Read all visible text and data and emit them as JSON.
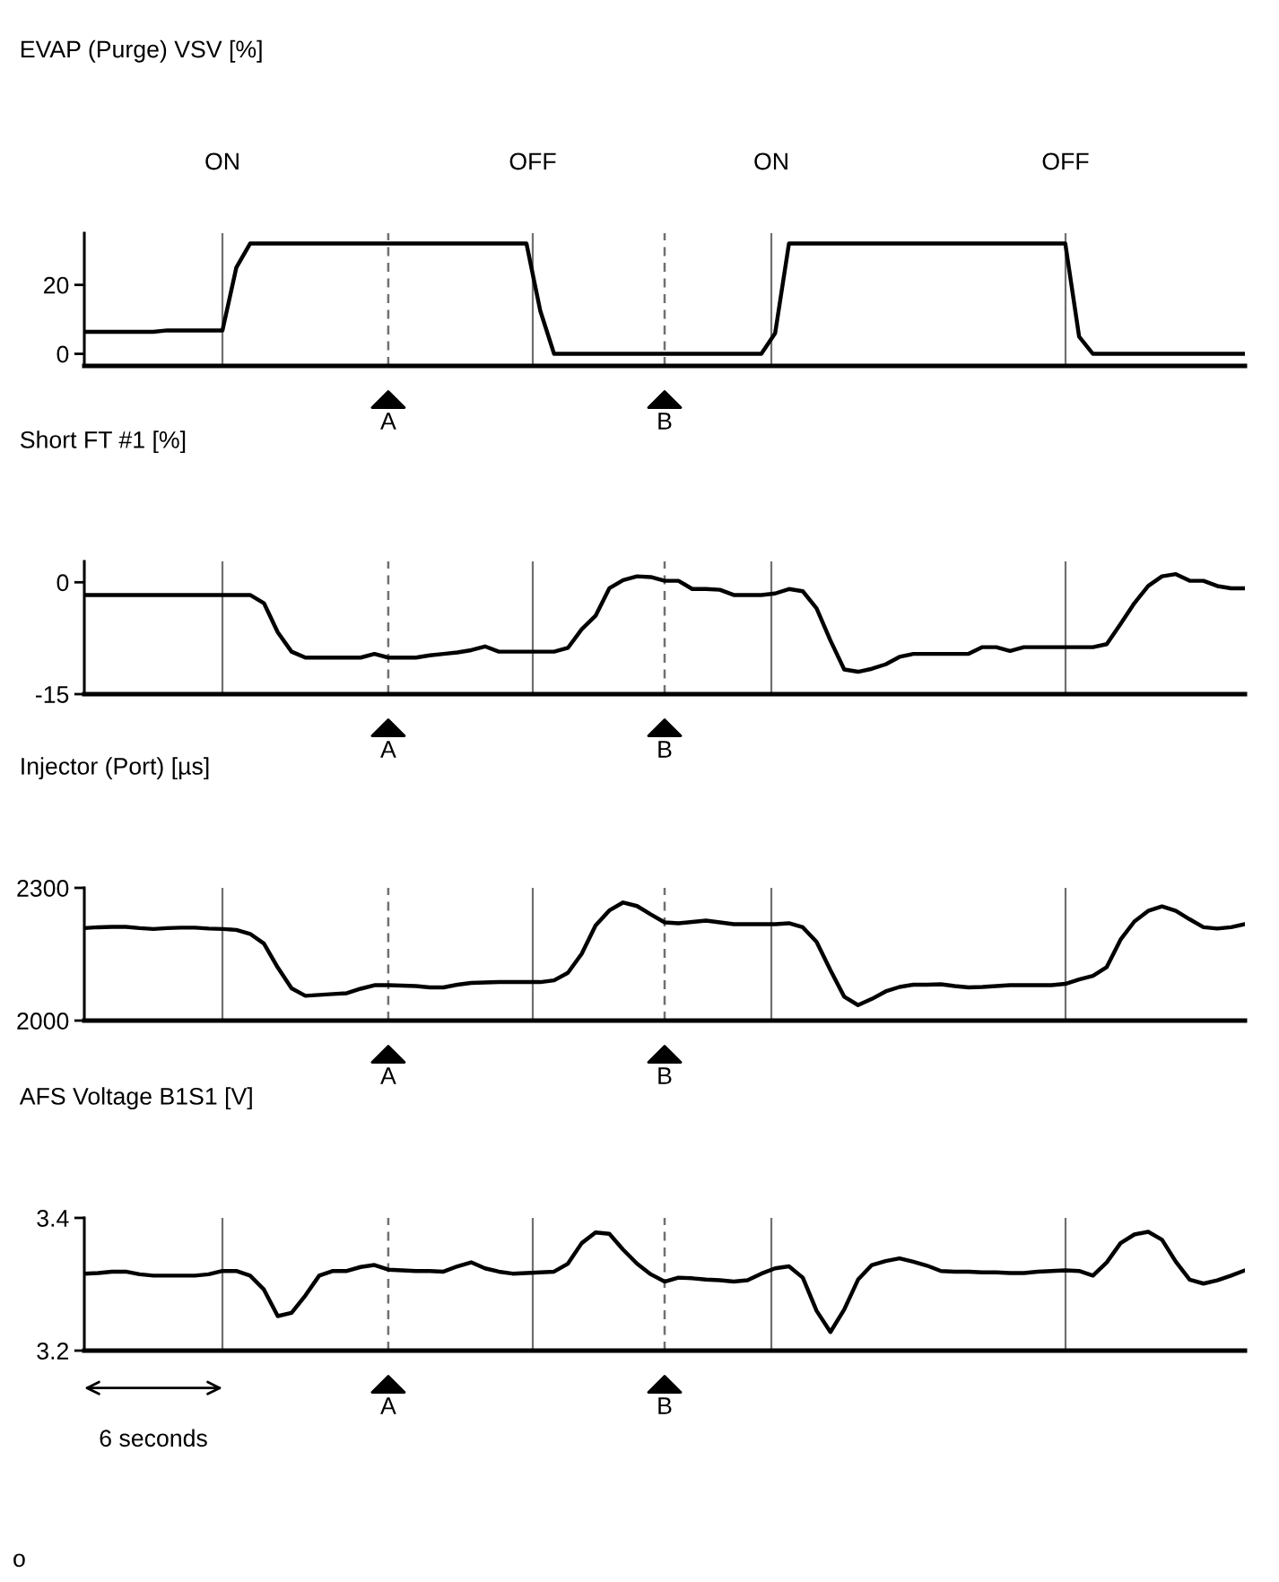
{
  "chart_data": [
    {
      "type": "line",
      "title": "EVAP (Purge) VSV [%]",
      "categories": [
        null,
        null,
        null,
        null,
        null,
        null,
        null,
        null,
        null,
        null,
        null,
        null,
        null,
        null,
        null,
        null,
        null,
        null,
        null,
        null,
        null,
        null,
        "A",
        null,
        null,
        null,
        null,
        null,
        null,
        null,
        null,
        null,
        null,
        null,
        null,
        null,
        null,
        null,
        null,
        null,
        null,
        null,
        "B",
        null,
        null,
        null,
        null,
        null,
        null,
        null,
        null,
        null,
        null,
        null,
        null,
        null,
        null,
        null,
        null,
        null,
        null,
        null,
        null,
        null,
        null,
        null,
        null,
        null,
        null,
        null,
        null,
        null,
        null,
        null,
        null,
        null,
        null,
        null,
        null,
        null,
        null,
        null,
        null,
        null,
        null
      ],
      "series": [
        {
          "color": "#000000",
          "values": [
            6.4,
            6.4,
            6.4,
            6.4,
            6.4,
            6.4,
            6.8,
            6.8,
            6.8,
            6.8,
            6.8,
            25,
            32,
            32,
            32,
            32,
            32,
            32,
            32,
            32,
            32,
            32,
            32,
            32,
            32,
            32,
            32,
            32,
            32,
            32,
            32,
            32,
            32,
            12.5,
            0,
            0,
            0,
            0,
            0,
            0,
            0,
            0,
            0,
            0,
            0,
            0,
            0,
            0,
            0,
            0,
            6,
            32,
            32,
            32,
            32,
            32,
            32,
            32,
            32,
            32,
            32,
            32,
            32,
            32,
            32,
            32,
            32,
            32,
            32,
            32,
            32,
            32,
            5,
            0,
            0,
            0,
            0,
            0,
            0,
            0,
            0,
            0,
            0,
            0,
            0
          ]
        }
      ],
      "ylim": [
        -3.5,
        35
      ],
      "yticks": [
        0,
        20
      ],
      "grid": "x",
      "annotations": [
        "ON",
        "OFF",
        "ON",
        "OFF"
      ]
    },
    {
      "type": "line",
      "title": "Short FT #1 [%]",
      "categories": [
        null,
        null,
        null,
        null,
        null,
        null,
        null,
        null,
        null,
        null,
        null,
        null,
        null,
        null,
        null,
        null,
        null,
        null,
        null,
        null,
        null,
        null,
        "A",
        null,
        null,
        null,
        null,
        null,
        null,
        null,
        null,
        null,
        null,
        null,
        null,
        null,
        null,
        null,
        null,
        null,
        null,
        null,
        "B",
        null,
        null,
        null,
        null,
        null,
        null,
        null,
        null,
        null,
        null,
        null,
        null,
        null,
        null,
        null,
        null,
        null,
        null,
        null,
        null,
        null,
        null,
        null,
        null,
        null,
        null,
        null,
        null,
        null,
        null,
        null,
        null,
        null,
        null,
        null,
        null,
        null,
        null,
        null,
        null,
        null,
        null
      ],
      "series": [
        {
          "color": "#000000",
          "values": [
            -1.7,
            -1.7,
            -1.7,
            -1.7,
            -1.7,
            -1.7,
            -1.7,
            -1.7,
            -1.7,
            -1.7,
            -1.7,
            -1.7,
            -1.7,
            -2.8,
            -6.7,
            -9.3,
            -10.1,
            -10.1,
            -10.1,
            -10.1,
            -10.1,
            -9.6,
            -10.1,
            -10.1,
            -10.1,
            -9.8,
            -9.6,
            -9.4,
            -9.1,
            -8.6,
            -9.3,
            -9.3,
            -9.3,
            -9.3,
            -9.3,
            -8.8,
            -6.3,
            -4.5,
            -0.8,
            0.3,
            0.8,
            0.7,
            0.2,
            0.2,
            -0.9,
            -0.9,
            -1.0,
            -1.7,
            -1.7,
            -1.7,
            -1.5,
            -0.9,
            -1.2,
            -3.5,
            -7.8,
            -11.7,
            -12.0,
            -11.6,
            -11.0,
            -10.0,
            -9.6,
            -9.6,
            -9.6,
            -9.6,
            -9.6,
            -8.7,
            -8.7,
            -9.2,
            -8.7,
            -8.7,
            -8.7,
            -8.7,
            -8.7,
            -8.7,
            -8.3,
            -5.6,
            -2.8,
            -0.5,
            0.8,
            1.1,
            0.2,
            0.2,
            -0.5,
            -0.8,
            -0.8
          ]
        }
      ],
      "ylim": [
        -15,
        2.8
      ],
      "yticks": [
        0,
        -15
      ],
      "grid": "x"
    },
    {
      "type": "line",
      "title": "Injector (Port) [µs]",
      "categories": [
        null,
        null,
        null,
        null,
        null,
        null,
        null,
        null,
        null,
        null,
        null,
        null,
        null,
        null,
        null,
        null,
        null,
        null,
        null,
        null,
        null,
        null,
        "A",
        null,
        null,
        null,
        null,
        null,
        null,
        null,
        null,
        null,
        null,
        null,
        null,
        null,
        null,
        null,
        null,
        null,
        null,
        null,
        "B",
        null,
        null,
        null,
        null,
        null,
        null,
        null,
        null,
        null,
        null,
        null,
        null,
        null,
        null,
        null,
        null,
        null,
        null,
        null,
        null,
        null,
        null,
        null,
        null,
        null,
        null,
        null,
        null,
        null,
        null,
        null,
        null,
        null,
        null,
        null,
        null,
        null,
        null,
        null,
        null,
        null,
        null
      ],
      "series": [
        {
          "color": "#000000",
          "values": [
            2209,
            2211,
            2212,
            2212,
            2209,
            2207,
            2209,
            2210,
            2210,
            2208,
            2207,
            2205,
            2196,
            2174,
            2120,
            2073,
            2056,
            2058,
            2060,
            2062,
            2072,
            2080,
            2080,
            2079,
            2078,
            2075,
            2075,
            2081,
            2085,
            2086,
            2087,
            2087,
            2087,
            2087,
            2091,
            2108,
            2151,
            2215,
            2249,
            2267,
            2259,
            2240,
            2222,
            2220,
            2223,
            2226,
            2222,
            2218,
            2218,
            2218,
            2218,
            2220,
            2211,
            2178,
            2114,
            2054,
            2035,
            2049,
            2066,
            2076,
            2081,
            2081,
            2082,
            2078,
            2075,
            2076,
            2078,
            2080,
            2080,
            2080,
            2080,
            2083,
            2093,
            2101,
            2121,
            2183,
            2224,
            2248,
            2258,
            2248,
            2229,
            2211,
            2208,
            2211,
            2218
          ]
        }
      ],
      "ylim": [
        2000,
        2300
      ],
      "yticks": [
        2000,
        2300
      ],
      "grid": "x"
    },
    {
      "type": "line",
      "title": "AFS Voltage B1S1 [V]",
      "categories": [
        null,
        null,
        null,
        null,
        null,
        null,
        null,
        null,
        null,
        null,
        null,
        null,
        null,
        null,
        null,
        null,
        null,
        null,
        null,
        null,
        null,
        null,
        "A",
        null,
        null,
        null,
        null,
        null,
        null,
        null,
        null,
        null,
        null,
        null,
        null,
        null,
        null,
        null,
        null,
        null,
        null,
        null,
        "B",
        null,
        null,
        null,
        null,
        null,
        null,
        null,
        null,
        null,
        null,
        null,
        null,
        null,
        null,
        null,
        null,
        null,
        null,
        null,
        null,
        null,
        null,
        null,
        null,
        null,
        null,
        null,
        null,
        null,
        null,
        null,
        null,
        null,
        null,
        null,
        null,
        null,
        null,
        null,
        null,
        null,
        null
      ],
      "series": [
        {
          "color": "#000000",
          "values": [
            3.316,
            3.317,
            3.319,
            3.319,
            3.315,
            3.313,
            3.313,
            3.313,
            3.313,
            3.315,
            3.32,
            3.32,
            3.313,
            3.292,
            3.252,
            3.257,
            3.283,
            3.313,
            3.32,
            3.32,
            3.326,
            3.329,
            3.322,
            3.321,
            3.32,
            3.32,
            3.319,
            3.327,
            3.333,
            3.324,
            3.319,
            3.316,
            3.317,
            3.318,
            3.319,
            3.331,
            3.362,
            3.378,
            3.376,
            3.352,
            3.331,
            3.315,
            3.304,
            3.31,
            3.309,
            3.307,
            3.306,
            3.304,
            3.306,
            3.316,
            3.324,
            3.327,
            3.31,
            3.26,
            3.228,
            3.262,
            3.307,
            3.329,
            3.335,
            3.339,
            3.334,
            3.328,
            3.32,
            3.319,
            3.319,
            3.318,
            3.318,
            3.317,
            3.317,
            3.319,
            3.32,
            3.321,
            3.32,
            3.313,
            3.333,
            3.362,
            3.375,
            3.379,
            3.367,
            3.334,
            3.307,
            3.301,
            3.306,
            3.313,
            3.321
          ]
        }
      ],
      "ylim": [
        3.2,
        3.4
      ],
      "yticks": [
        3.2,
        3.4
      ],
      "grid": "x",
      "annotations": [
        "6 seconds",
        "o"
      ]
    }
  ]
}
